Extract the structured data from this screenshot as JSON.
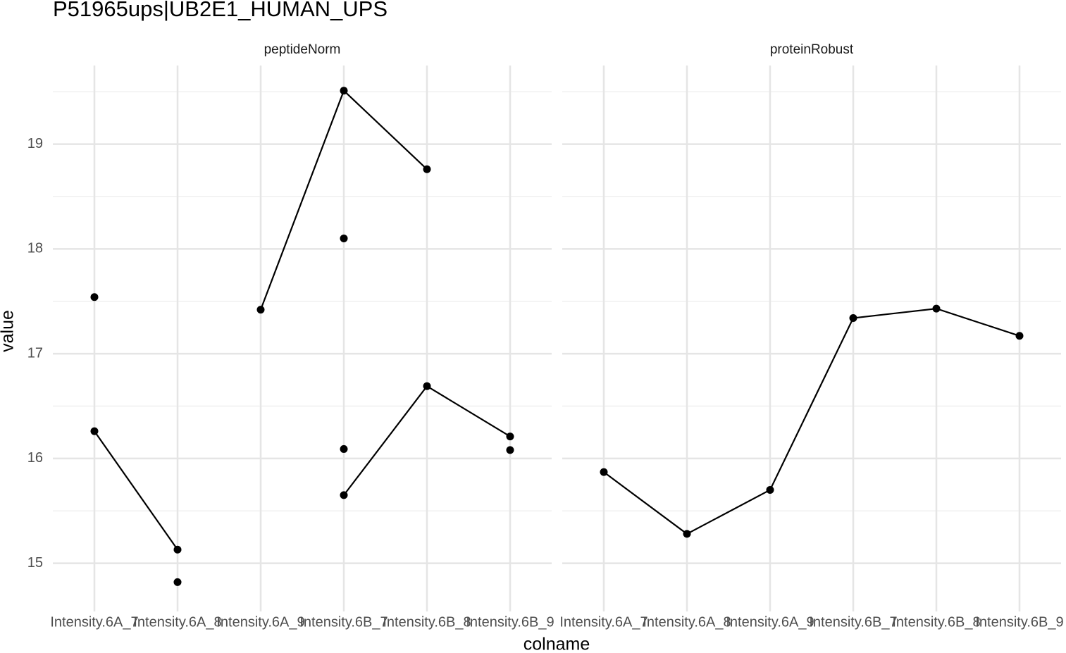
{
  "chart_data": {
    "type": "line",
    "title": "P51965ups|UB2E1_HUMAN_UPS",
    "x_label": "colname",
    "y_label": "value",
    "categories": [
      "Intensity.6A_7",
      "Intensity.6A_8",
      "Intensity.6A_9",
      "Intensity.6B_7",
      "Intensity.6B_8",
      "Intensity.6B_9"
    ],
    "ylim": [
      14.54,
      19.75
    ],
    "yticks": [
      15,
      16,
      17,
      18,
      19
    ],
    "grid": true,
    "minor_grid": true,
    "color": "#000000",
    "panels": [
      {
        "name": "peptideNorm",
        "series": [
          {
            "values": [
              16.26,
              15.13,
              null,
              null,
              null,
              null
            ]
          },
          {
            "values": [
              null,
              null,
              17.42,
              19.51,
              18.76,
              null
            ]
          },
          {
            "values": [
              null,
              null,
              null,
              15.65,
              16.69,
              16.21
            ]
          },
          {
            "values": [
              17.54,
              null,
              null,
              18.1,
              null,
              16.08
            ]
          },
          {
            "values": [
              null,
              14.82,
              null,
              16.09,
              null,
              null
            ]
          }
        ]
      },
      {
        "name": "proteinRobust",
        "series": [
          {
            "values": [
              15.87,
              15.28,
              15.7,
              17.34,
              17.43,
              17.17
            ]
          }
        ]
      }
    ]
  }
}
